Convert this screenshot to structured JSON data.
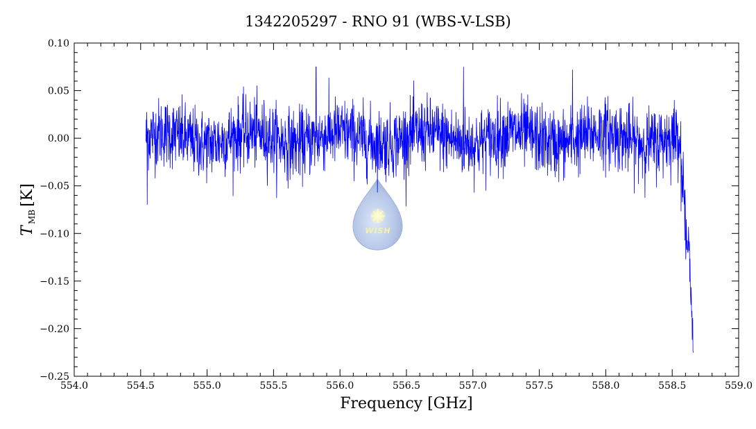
{
  "chart_data": {
    "type": "line",
    "title": "1342205297 - RNO 91 (WBS-V-LSB)",
    "xlabel": "Frequency [GHz]",
    "ylabel_main": "T",
    "ylabel_sub": "MB",
    "ylabel_unit": "[K]",
    "xlim": [
      554.0,
      559.0
    ],
    "ylim": [
      -0.25,
      0.1
    ],
    "x_ticks": [
      "554.0",
      "554.5",
      "555.0",
      "555.5",
      "556.0",
      "556.5",
      "557.0",
      "557.5",
      "558.0",
      "558.5",
      "559.0"
    ],
    "y_ticks": [
      "-0.25",
      "-0.20",
      "-0.15",
      "-0.10",
      "-0.05",
      "0.00",
      "0.05",
      "0.10"
    ],
    "grid": false,
    "line_color": "#0000ff",
    "series": [
      {
        "x_range": [
          554.54,
          558.66
        ],
        "baseline": 0.0,
        "noise_rms": 0.018,
        "features": [
          {
            "x": 554.55,
            "y": -0.07
          },
          {
            "x": 555.82,
            "y": 0.075
          },
          {
            "x": 556.93,
            "y": 0.075
          },
          {
            "x": 557.75,
            "y": 0.072
          },
          {
            "x": 558.58,
            "y": -0.05
          },
          {
            "x": 558.6,
            "y": -0.09
          },
          {
            "x": 558.63,
            "y": -0.13
          },
          {
            "x": 558.66,
            "y": -0.22
          }
        ]
      }
    ]
  },
  "logo": {
    "text": "WISH"
  }
}
